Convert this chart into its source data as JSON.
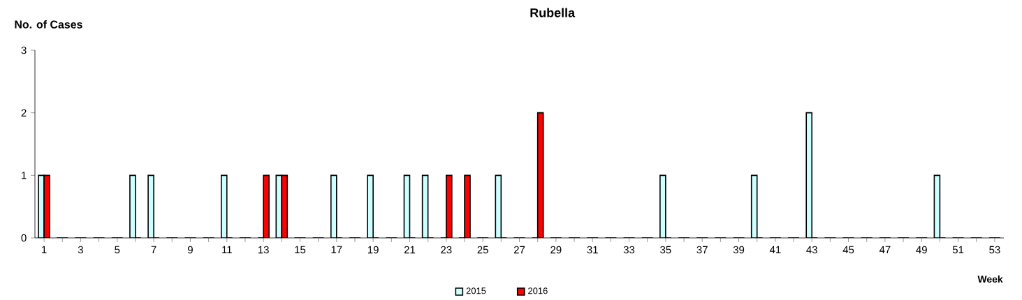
{
  "chart_data": {
    "type": "bar",
    "title": "Rubella",
    "xlabel": "Week",
    "ylabel": "No. of Cases",
    "categories": [
      "1",
      null,
      "3",
      null,
      "5",
      null,
      "7",
      null,
      "9",
      null,
      "11",
      null,
      "13",
      null,
      "15",
      null,
      "17",
      null,
      "19",
      null,
      "21",
      null,
      "23",
      null,
      "25",
      null,
      "27",
      null,
      "29",
      null,
      "31",
      null,
      "33",
      null,
      "35",
      null,
      "37",
      null,
      "39",
      null,
      "41",
      null,
      "43",
      null,
      "45",
      null,
      "47",
      null,
      "49",
      null,
      "51",
      null,
      "53"
    ],
    "series": [
      {
        "name": "2015",
        "color": "#ccffff",
        "values": [
          1,
          0,
          0,
          0,
          0,
          1,
          1,
          0,
          0,
          0,
          1,
          0,
          0,
          1,
          0,
          0,
          1,
          0,
          1,
          0,
          1,
          1,
          0,
          0,
          0,
          1,
          0,
          0,
          0,
          0,
          0,
          0,
          0,
          0,
          1,
          0,
          0,
          0,
          0,
          1,
          0,
          0,
          2,
          0,
          0,
          0,
          0,
          0,
          0,
          1,
          0,
          0,
          0
        ]
      },
      {
        "name": "2016",
        "color": "#ff0000",
        "values": [
          1,
          0,
          0,
          0,
          0,
          0,
          0,
          0,
          0,
          0,
          0,
          0,
          1,
          1,
          0,
          0,
          0,
          0,
          0,
          0,
          0,
          0,
          1,
          1,
          0,
          0,
          0,
          2,
          0,
          0,
          0,
          0,
          0,
          0,
          0,
          0,
          0,
          0,
          0,
          0,
          0,
          0,
          0,
          0,
          0,
          0,
          0,
          0,
          0,
          0,
          0,
          0,
          0
        ]
      }
    ],
    "ylim": [
      0,
      3
    ],
    "yticks": [
      0,
      1,
      2,
      3
    ],
    "legend": "bottom"
  }
}
